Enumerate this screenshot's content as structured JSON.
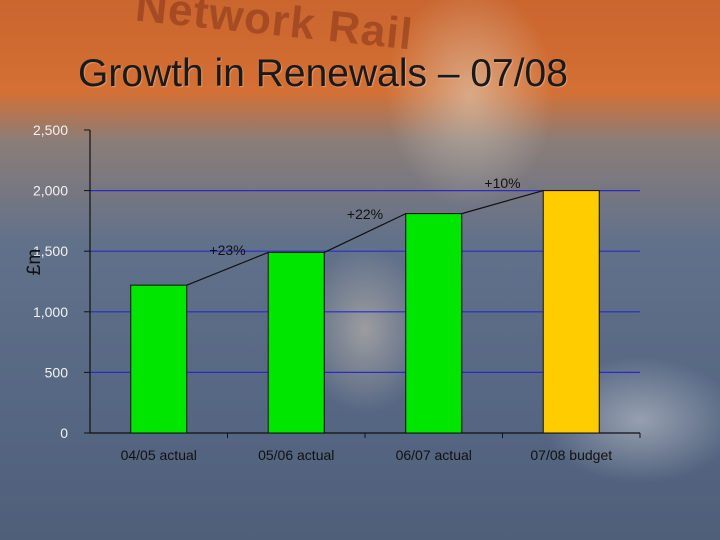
{
  "slide": {
    "title": "Growth in Renewals – 07/08",
    "logo": "Network Rail"
  },
  "chart_data": {
    "type": "bar",
    "title": "Growth in Renewals – 07/08",
    "ylabel": "£m",
    "xlabel": "",
    "categories": [
      "04/05 actual",
      "05/06 actual",
      "06/07 actual",
      "07/08 budget"
    ],
    "values": [
      1220,
      1490,
      1810,
      2000
    ],
    "ylim": [
      0,
      2500
    ],
    "yticks": [
      0,
      500,
      1000,
      1500,
      2000,
      2500
    ],
    "ytick_labels": [
      "0",
      "500",
      "1,000",
      "1,500",
      "2,000",
      "2,500"
    ],
    "growth_labels": [
      "+23%",
      "+22%",
      "+10%"
    ],
    "bar_colors": [
      "#00e600",
      "#00e600",
      "#00e600",
      "#ffcc00"
    ],
    "grid": true,
    "grid_color": "#2a2ac8"
  }
}
